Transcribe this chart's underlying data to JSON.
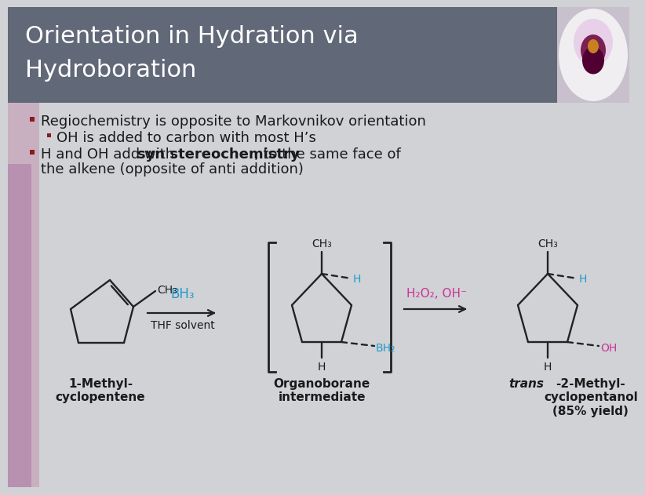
{
  "title_line1": "Orientation in Hydration via",
  "title_line2": "Hydroboration",
  "title_bg_color": "#616878",
  "title_text_color": "#ffffff",
  "body_bg_color": "#d0d2d6",
  "bullet_color": "#8b1a1a",
  "bullet1": "Regiochemistry is opposite to Markovnikov orientation",
  "sub_bullet": "OH is added to carbon with most H’s",
  "bullet2_pre": "H and OH add with ",
  "bullet2_bold": "syn stereochemistry",
  "bullet2_post": ", to the same face of",
  "bullet2_cont": "the alkene (opposite of anti addition)",
  "reagent1_color": "#2299cc",
  "reagent2_color": "#cc3399",
  "text_color": "#1a1a1a",
  "bond_color": "#222222",
  "blue_color": "#2299cc",
  "pink_color": "#cc3399",
  "label1": "1-Methyl-\ncyclopentene",
  "label2": "Organoborane\nintermediate",
  "label3_italic": "trans",
  "label3_rest": "-2-Methyl-\ncyclopentanol\n(85% yield)",
  "orchid_box_color": "#b0a0b8",
  "orchid_inner_color": "#8a2060"
}
